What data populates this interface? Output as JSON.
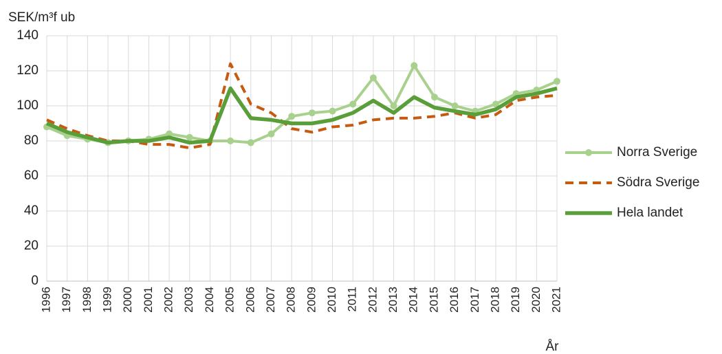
{
  "chart_data": {
    "type": "line",
    "y_label": "SEK/m³f ub",
    "x_label": "År",
    "categories": [
      "1996",
      "1997",
      "1998",
      "1999",
      "2000",
      "2001",
      "2002",
      "2003",
      "2004",
      "2005",
      "2006",
      "2007",
      "2008",
      "2009",
      "2010",
      "2011",
      "2012",
      "2013",
      "2014",
      "2015",
      "2016",
      "2017",
      "2018",
      "2019",
      "2020",
      "2021"
    ],
    "series": [
      {
        "name": "Norra Sverige",
        "color": "#a9d18e",
        "style": "solid",
        "marker": true,
        "values": [
          88,
          83,
          81,
          79,
          80,
          81,
          84,
          82,
          80,
          80,
          79,
          84,
          94,
          96,
          97,
          101,
          116,
          100,
          123,
          105,
          100,
          97,
          101,
          107,
          109,
          114
        ]
      },
      {
        "name": "Södra Sverige",
        "color": "#c55a11",
        "style": "dashed",
        "marker": false,
        "values": [
          92,
          87,
          83,
          80,
          80,
          78,
          78,
          76,
          78,
          124,
          101,
          96,
          87,
          85,
          88,
          89,
          92,
          93,
          93,
          94,
          96,
          93,
          95,
          103,
          105,
          106
        ]
      },
      {
        "name": "Hela landet",
        "color": "#5a9e3a",
        "style": "solid",
        "marker": false,
        "values": [
          90,
          85,
          82,
          79,
          80,
          80,
          82,
          79,
          80,
          110,
          93,
          92,
          90,
          90,
          92,
          96,
          103,
          96,
          105,
          99,
          97,
          95,
          98,
          105,
          107,
          110
        ]
      }
    ],
    "ylim": [
      0,
      140
    ],
    "yticks": [
      0,
      20,
      40,
      60,
      80,
      100,
      120,
      140
    ],
    "grid": true,
    "legend": "right"
  }
}
